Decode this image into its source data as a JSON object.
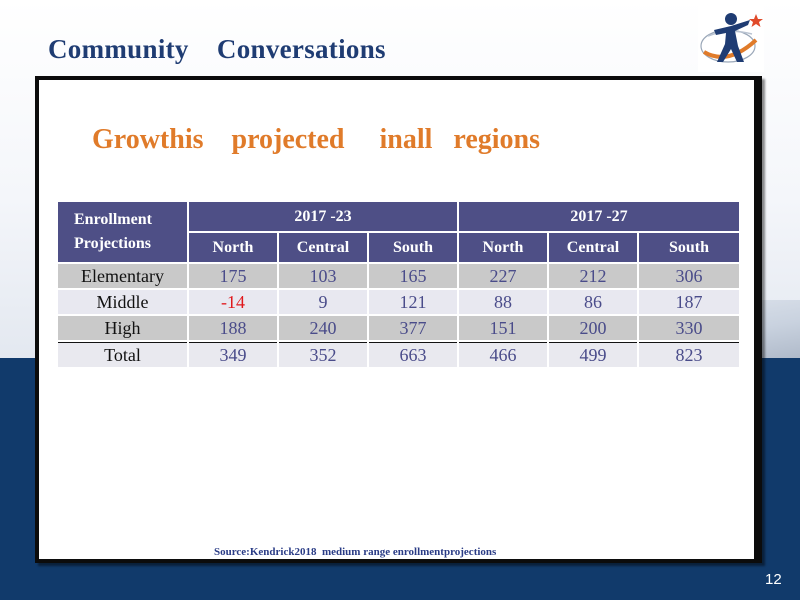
{
  "slide": {
    "title": "Community    Conversations",
    "headline": "Growthis    projected     inall   regions",
    "source": "Source:Kendrick2018  medium range enrollmentprojections",
    "number": "12"
  },
  "table": {
    "corner_label_line1": "Enrollment",
    "corner_label_line2": "Projections",
    "groups": [
      "2017 -23",
      "2017 -27"
    ],
    "columns": [
      "North",
      "Central",
      "South",
      "North",
      "Central",
      "South"
    ],
    "rows": [
      {
        "label": "Elementary",
        "values": [
          "175",
          "103",
          "165",
          "227",
          "212",
          "306"
        ]
      },
      {
        "label": "Middle",
        "values": [
          "-14",
          "9",
          "121",
          "88",
          "86",
          "187"
        ]
      },
      {
        "label": "High",
        "values": [
          "188",
          "240",
          "377",
          "151",
          "200",
          "330"
        ]
      },
      {
        "label": "Total",
        "values": [
          "349",
          "352",
          "663",
          "466",
          "499",
          "823"
        ]
      }
    ]
  },
  "colors": {
    "title": "#1f3c73",
    "headline": "#e07b2a",
    "header_bg": "#4e4f86",
    "negative": "#e0181c",
    "footer_band": "#113a6b"
  },
  "icons": {
    "logo": "figure-with-star-logo"
  }
}
